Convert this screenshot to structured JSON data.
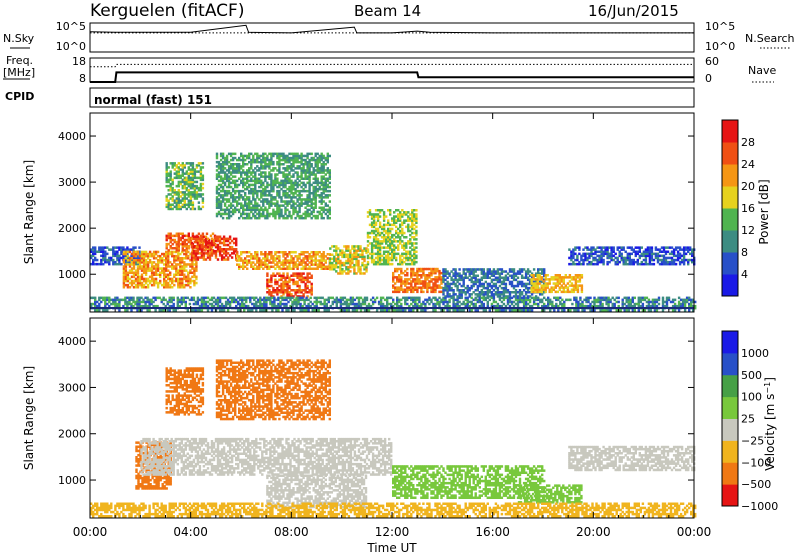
{
  "header": {
    "station": "Kerguelen (fitACF)",
    "beam": "Beam 14",
    "date": "16/Jun/2015"
  },
  "noise_panel": {
    "left_label": "N.Sky",
    "right_label": "N.Search",
    "left_ticks": [
      "10^5",
      "10^0"
    ],
    "right_ticks": [
      "10^5",
      "10^0"
    ]
  },
  "freq_panel": {
    "left_label_1": "Freq.",
    "left_label_2": "[MHz]",
    "right_label": "Nave",
    "left_ticks": [
      "18",
      "8"
    ],
    "right_ticks": [
      "60",
      "0"
    ]
  },
  "cpid_panel": {
    "label": "CPID",
    "value": "normal (fast) 151"
  },
  "x_axis": {
    "label": "Time UT",
    "ticks": [
      "00:00",
      "04:00",
      "08:00",
      "12:00",
      "16:00",
      "20:00",
      "00:00"
    ]
  },
  "colors": {
    "power_scale": [
      "#1a1ae6",
      "#2850c8",
      "#3c8c82",
      "#50b450",
      "#e6d21e",
      "#f59614",
      "#f05014",
      "#e61414"
    ],
    "velocity_scale": [
      "#e61414",
      "#f07814",
      "#f0b41e",
      "#c8c8be",
      "#78c83c",
      "#46a046",
      "#2850c8",
      "#1a1ae6"
    ]
  },
  "chart_data": [
    {
      "type": "line",
      "title": "N.Sky / N.Search",
      "x_unit": "hours UT",
      "series": [
        {
          "name": "N.Sky",
          "x": [
            0,
            1,
            4,
            6.2,
            6.3,
            8,
            10.5,
            10.6,
            12,
            13,
            13.5,
            16,
            20,
            24
          ],
          "y": [
            3.5,
            3.4,
            3.4,
            4.6,
            3.4,
            3.3,
            4.3,
            3.3,
            3.3,
            3.6,
            3.4,
            3.3,
            3.3,
            3.3
          ]
        },
        {
          "name": "N.Search",
          "x": [
            0,
            24
          ],
          "y": [
            3.3,
            3.3
          ]
        }
      ],
      "ylim": [
        0,
        5
      ]
    },
    {
      "type": "line",
      "title": "Freq. / Nave",
      "x_unit": "hours UT",
      "series": [
        {
          "name": "Freq.",
          "x": [
            0,
            1,
            1.05,
            13,
            13.05,
            24
          ],
          "y": [
            8,
            8,
            12,
            12,
            10,
            10
          ]
        },
        {
          "name": "Nave",
          "x": [
            0,
            1,
            1.05,
            24
          ],
          "y": [
            38,
            38,
            44,
            44
          ]
        }
      ],
      "ylim_left": [
        8,
        18
      ],
      "ylim_right": [
        0,
        60
      ]
    },
    {
      "type": "heatmap",
      "title": "Power",
      "xlabel": "Time UT",
      "ylabel": "Slant Range [km]",
      "colorbar_label": "Power [dB]",
      "xlim": [
        0,
        24
      ],
      "ylim": [
        180,
        4500
      ],
      "y_ticks": [
        1000,
        2000,
        3000,
        4000
      ],
      "colorbar_ticks": [
        4,
        8,
        12,
        16,
        20,
        24,
        28
      ],
      "colorbar_range": [
        0,
        32
      ],
      "regions": [
        {
          "t": [
            0,
            2
          ],
          "r": [
            1200,
            1600
          ],
          "dB": 6
        },
        {
          "t": [
            1.3,
            4.2
          ],
          "r": [
            700,
            1500
          ],
          "dB": 22
        },
        {
          "t": [
            3.0,
            5.0
          ],
          "r": [
            1500,
            1900
          ],
          "dB": 25
        },
        {
          "t": [
            4.0,
            5.8
          ],
          "r": [
            1300,
            1800
          ],
          "dB": 27
        },
        {
          "t": [
            5.8,
            9.5
          ],
          "r": [
            1100,
            1500
          ],
          "dB": 22
        },
        {
          "t": [
            7.0,
            8.8
          ],
          "r": [
            500,
            1000
          ],
          "dB": 26
        },
        {
          "t": [
            9.5,
            11.0
          ],
          "r": [
            1000,
            1600
          ],
          "dB": 18
        },
        {
          "t": [
            11.0,
            13.0
          ],
          "r": [
            1200,
            2400
          ],
          "dB": 16
        },
        {
          "t": [
            12.0,
            14.0
          ],
          "r": [
            600,
            1100
          ],
          "dB": 24
        },
        {
          "t": [
            14.0,
            18.0
          ],
          "r": [
            500,
            1100
          ],
          "dB": 8
        },
        {
          "t": [
            17.5,
            19.5
          ],
          "r": [
            600,
            1000
          ],
          "dB": 20
        },
        {
          "t": [
            19.0,
            24.0
          ],
          "r": [
            1200,
            1600
          ],
          "dB": 6
        },
        {
          "t": [
            3.0,
            4.5
          ],
          "r": [
            2400,
            3400
          ],
          "dB": 14
        },
        {
          "t": [
            5.0,
            9.5
          ],
          "r": [
            2200,
            3600
          ],
          "dB": 12
        },
        {
          "t": [
            0,
            24
          ],
          "r": [
            200,
            500
          ],
          "dB": 10
        }
      ]
    },
    {
      "type": "heatmap",
      "title": "Velocity",
      "xlabel": "Time UT",
      "ylabel": "Slant Range [km]",
      "colorbar_label": "Velocity [m s^-1]",
      "xlim": [
        0,
        24
      ],
      "ylim": [
        180,
        4500
      ],
      "y_ticks": [
        1000,
        2000,
        3000,
        4000
      ],
      "colorbar_ticks": [
        1000,
        500,
        100,
        25,
        -25,
        -100,
        -500,
        -1000
      ],
      "regions": [
        {
          "t": [
            1.8,
            3.2
          ],
          "r": [
            800,
            1800
          ],
          "ms": -300
        },
        {
          "t": [
            2.0,
            12.0
          ],
          "r": [
            1100,
            1900
          ],
          "ms": 0
        },
        {
          "t": [
            7.0,
            11.0
          ],
          "r": [
            400,
            1100
          ],
          "ms": 0
        },
        {
          "t": [
            12.0,
            18.0
          ],
          "r": [
            600,
            1300
          ],
          "ms": 80
        },
        {
          "t": [
            17.0,
            19.5
          ],
          "r": [
            500,
            900
          ],
          "ms": 80
        },
        {
          "t": [
            19.0,
            24.0
          ],
          "r": [
            1200,
            1700
          ],
          "ms": 0
        },
        {
          "t": [
            3.0,
            4.5
          ],
          "r": [
            2400,
            3400
          ],
          "ms": -300
        },
        {
          "t": [
            5.0,
            9.5
          ],
          "r": [
            2300,
            3600
          ],
          "ms": -300
        },
        {
          "t": [
            0,
            24
          ],
          "r": [
            200,
            500
          ],
          "ms": -60
        }
      ]
    }
  ]
}
